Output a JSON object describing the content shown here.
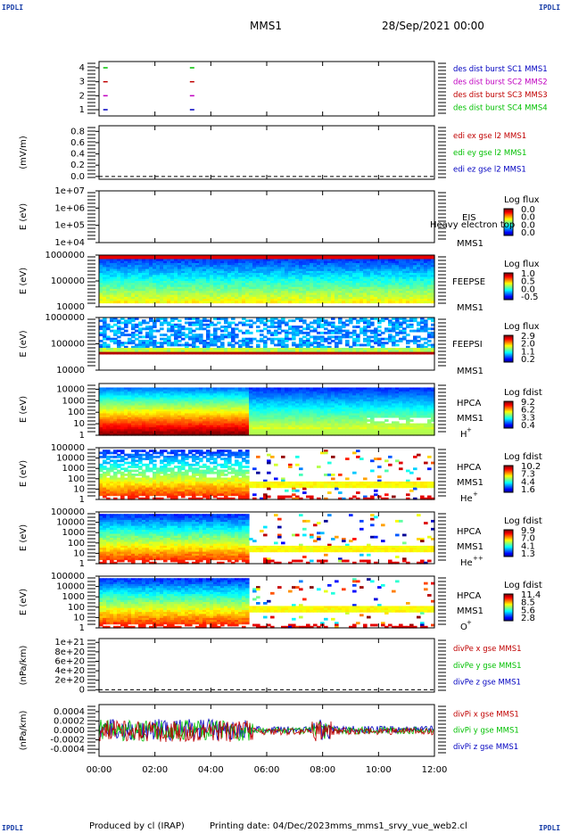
{
  "header": {
    "spacecraft": "MMS1",
    "date_time": "28/Sep/2021 00:00",
    "corner_label": "IPDLI"
  },
  "footer": {
    "produced_by": "Produced by cl (IRAP)",
    "printing_date": "Printing date: 04/Dec/2023",
    "filename": "mms_mms1_srvy_vue_web2.cl"
  },
  "chart_data": {
    "type": "multi-panel time series / spectrogram stack",
    "time_axis": {
      "ticks": [
        "00:00",
        "02:00",
        "04:00",
        "06:00",
        "08:00",
        "10:00",
        "12:00"
      ],
      "range_hours": [
        0,
        12
      ]
    },
    "panels": [
      {
        "id": "burst",
        "type": "line",
        "yticks": [
          "4",
          "3",
          "2",
          "1"
        ],
        "legend": [
          {
            "text": "des dist burst SC1 MMS1",
            "color": "#0000c0"
          },
          {
            "text": "des dist burst SC2 MMS2",
            "color": "#c000c0"
          },
          {
            "text": "des dist burst SC3 MMS3",
            "color": "#c00000"
          },
          {
            "text": "des dist burst SC4 MMS4",
            "color": "#00c000"
          }
        ],
        "burst_times_hours": [
          0.15,
          3.25
        ]
      },
      {
        "id": "edi",
        "type": "line",
        "ylabel": "(mV/m)",
        "yticks": [
          "0.8",
          "0.6",
          "0.4",
          "0.2",
          "0.0"
        ],
        "ylim": [
          -0.05,
          0.9
        ],
        "legend": [
          {
            "text": "edi ex gse l2 MMS1",
            "color": "#c00000"
          },
          {
            "text": "edi ey gse l2 MMS1",
            "color": "#00c000"
          },
          {
            "text": "edi ez gse l2 MMS1",
            "color": "#0000c0"
          }
        ],
        "dashed_zero": true
      },
      {
        "id": "eis",
        "type": "heatmap",
        "ylabel": "E (eV)",
        "yticks": [
          "1e+07",
          "1e+06",
          "1e+05",
          "1e+04"
        ],
        "ylog": [
          4,
          7
        ],
        "instrument": [
          "EIS",
          "MMS1"
        ],
        "overlay_text": "Heavy electron top",
        "colorbar": {
          "title": "Log flux",
          "ticks": [
            "0.0",
            "0.0",
            "0.0",
            "0.0"
          ]
        },
        "filled": false
      },
      {
        "id": "feepse",
        "type": "heatmap",
        "ylabel": "E (eV)",
        "yticks": [
          "1000000",
          "100000",
          "10000"
        ],
        "ylog": [
          4,
          6
        ],
        "instrument": [
          "FEEPSE",
          "MMS1"
        ],
        "colorbar": {
          "title": "Log flux",
          "ticks": [
            "1.0",
            "0.5",
            "0.0",
            "-0.5"
          ]
        },
        "fill_profile": "feepse",
        "filled": true
      },
      {
        "id": "feepsi",
        "type": "heatmap",
        "ylabel": "E (eV)",
        "yticks": [
          "1000000",
          "100000",
          "10000"
        ],
        "ylog": [
          4,
          6
        ],
        "instrument": [
          "FEEPSI",
          "MMS1"
        ],
        "colorbar": {
          "title": "Log flux",
          "ticks": [
            "2.9",
            "2.0",
            "1.1",
            "0.2"
          ]
        },
        "fill_profile": "feepsi",
        "filled": true
      },
      {
        "id": "hpca_h",
        "type": "heatmap",
        "ylabel": "E (eV)",
        "yticks": [
          "10000",
          "1000",
          "100",
          "10",
          "1"
        ],
        "ylog": [
          0,
          4.5
        ],
        "instrument": [
          "HPCA",
          "MMS1",
          "H",
          "+"
        ],
        "colorbar": {
          "title": "Log fdist",
          "ticks": [
            "9.2",
            "6.2",
            "3.3",
            "0.4"
          ]
        },
        "fill_profile": "hpca_h",
        "filled": true
      },
      {
        "id": "hpca_he",
        "type": "heatmap",
        "ylabel": "E (eV)",
        "yticks": [
          "100000",
          "10000",
          "1000",
          "100",
          "10",
          "1"
        ],
        "ylog": [
          0,
          5
        ],
        "instrument": [
          "HPCA",
          "MMS1",
          "He",
          "+"
        ],
        "colorbar": {
          "title": "Log fdist",
          "ticks": [
            "10.2",
            "7.3",
            "4.4",
            "1.6"
          ]
        },
        "fill_profile": "hpca_he",
        "filled": true
      },
      {
        "id": "hpca_he2",
        "type": "heatmap",
        "ylabel": "E (eV)",
        "yticks": [
          "100000",
          "10000",
          "1000",
          "100",
          "10",
          "1"
        ],
        "ylog": [
          0,
          5
        ],
        "instrument": [
          "HPCA",
          "MMS1",
          "He",
          "++"
        ],
        "colorbar": {
          "title": "Log fdist",
          "ticks": [
            "9.9",
            "7.0",
            "4.1",
            "1.3"
          ]
        },
        "fill_profile": "hpca_he2",
        "filled": true
      },
      {
        "id": "hpca_o",
        "type": "heatmap",
        "ylabel": "E (eV)",
        "yticks": [
          "100000",
          "10000",
          "1000",
          "100",
          "10",
          "1"
        ],
        "ylog": [
          0,
          5
        ],
        "instrument": [
          "HPCA",
          "MMS1",
          "O",
          "+"
        ],
        "colorbar": {
          "title": "Log fdist",
          "ticks": [
            "11.4",
            "8.5",
            "5.6",
            "2.8"
          ]
        },
        "fill_profile": "hpca_o",
        "filled": true
      },
      {
        "id": "divpe",
        "type": "line",
        "ylabel": "(nPa/km)",
        "yticks": [
          "1e+21",
          "8e+20",
          "6e+20",
          "4e+20",
          "2e+20",
          "0"
        ],
        "ylim": [
          -0.05,
          1.08
        ],
        "legend": [
          {
            "text": "divPe x gse MMS1",
            "color": "#c00000"
          },
          {
            "text": "divPe y gse MMS1",
            "color": "#00c000"
          },
          {
            "text": "divPe z gse MMS1",
            "color": "#0000c0"
          }
        ],
        "dashed_zero": true
      },
      {
        "id": "divpi",
        "type": "line",
        "ylabel": "(nPa/km)",
        "yticks": [
          "0.0004",
          "0.0002",
          "0.0000",
          "-0.0002",
          "-0.0004"
        ],
        "ylim": [
          -0.00055,
          0.00055
        ],
        "legend": [
          {
            "text": "divPi x gse MMS1",
            "color": "#c00000"
          },
          {
            "text": "divPi y gse MMS1",
            "color": "#00c000"
          },
          {
            "text": "divPi z gse MMS1",
            "color": "#0000c0"
          }
        ],
        "noisy_signal": true
      }
    ]
  }
}
